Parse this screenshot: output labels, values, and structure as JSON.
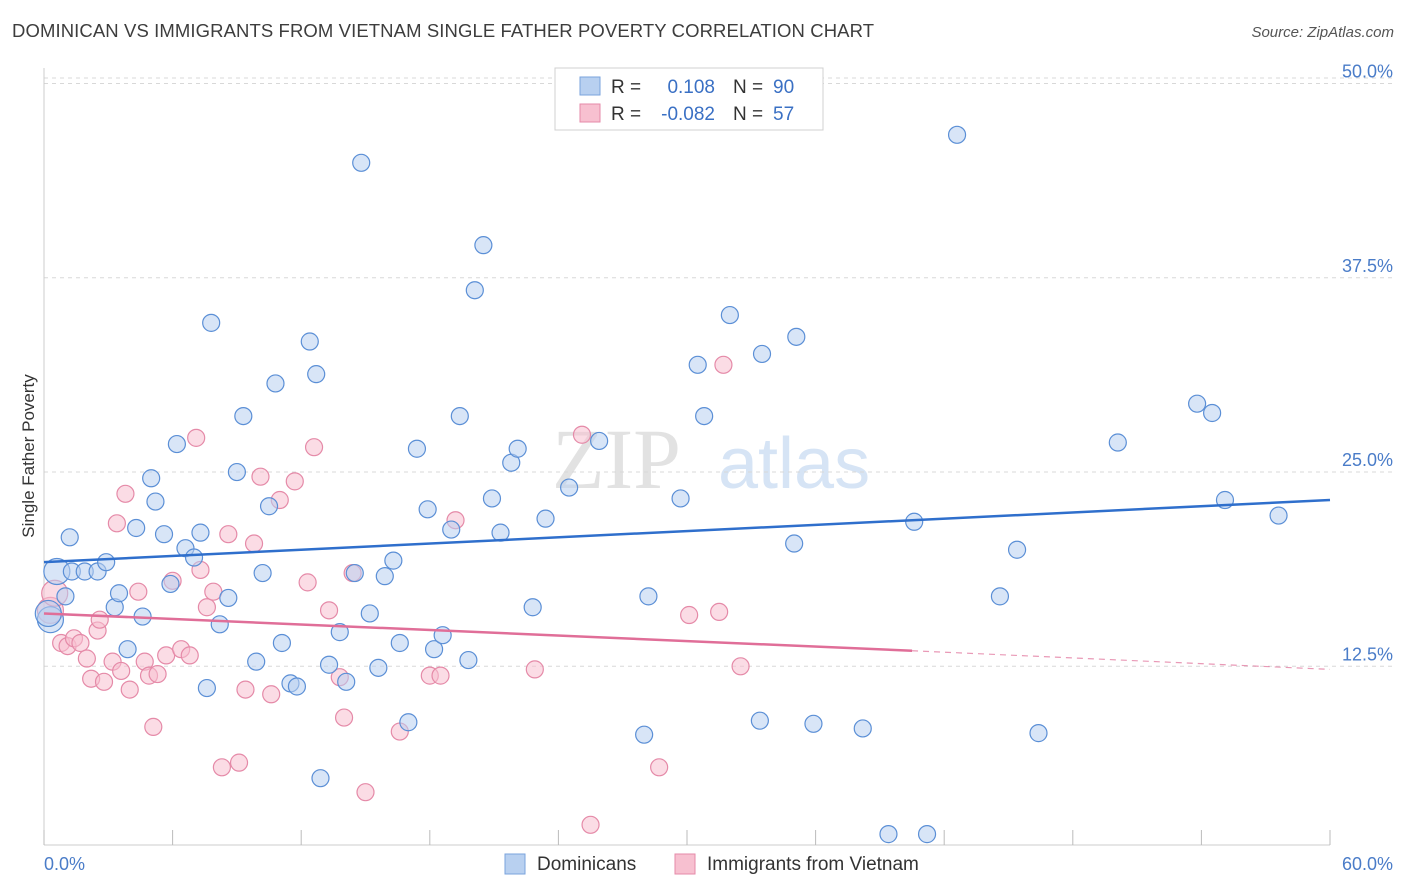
{
  "title": "DOMINICAN VS IMMIGRANTS FROM VIETNAM SINGLE FATHER POVERTY CORRELATION CHART",
  "source": "Source: ZipAtlas.com",
  "watermark": {
    "zip": "ZIP",
    "atlas": "atlas"
  },
  "colors": {
    "blue_fill": "#b8d0f0",
    "blue_stroke": "#5b8fd6",
    "blue_line": "#2f6fcc",
    "pink_fill": "#f7c0d0",
    "pink_stroke": "#e58aa8",
    "pink_line": "#e06e98",
    "grid": "#d8d8d8",
    "tick_text": "#4a7cc8"
  },
  "legend": {
    "rows": [
      {
        "r_label": "R =",
        "r_value": "0.108",
        "n_label": "N =",
        "n_value": "90",
        "series": "blue"
      },
      {
        "r_label": "R =",
        "r_value": "-0.082",
        "n_label": "N =",
        "n_value": "57",
        "series": "pink"
      }
    ]
  },
  "bottom_legend": [
    "Dominicans",
    "Immigrants from Vietnam"
  ],
  "chart_data": {
    "type": "scatter",
    "ylabel": "Single Father Poverty",
    "x_tick_labels": [
      "0.0%",
      "60.0%"
    ],
    "y_tick_labels": [
      "12.5%",
      "25.0%",
      "37.5%",
      "50.0%"
    ],
    "y_ticks": [
      12.5,
      25.0,
      37.5,
      50.0
    ],
    "xlim": [
      0,
      60
    ],
    "ylim": [
      1.0,
      51.0
    ],
    "grid": true,
    "legend_position": "top-center",
    "series": [
      {
        "name": "Dominicans",
        "color": "blue",
        "trend": {
          "x": [
            0,
            60
          ],
          "y": [
            19.2,
            23.2
          ],
          "dashed_from": null
        },
        "points": [
          [
            0.6,
            18.6
          ],
          [
            1.0,
            17.0
          ],
          [
            1.2,
            20.8
          ],
          [
            1.3,
            18.6
          ],
          [
            1.9,
            18.6
          ],
          [
            2.5,
            18.6
          ],
          [
            2.9,
            19.2
          ],
          [
            3.3,
            16.3
          ],
          [
            3.5,
            17.2
          ],
          [
            3.9,
            13.6
          ],
          [
            4.3,
            21.4
          ],
          [
            4.6,
            15.7
          ],
          [
            5.0,
            24.6
          ],
          [
            5.2,
            23.1
          ],
          [
            5.6,
            21.0
          ],
          [
            5.9,
            17.8
          ],
          [
            6.2,
            26.8
          ],
          [
            6.6,
            20.1
          ],
          [
            7.0,
            19.5
          ],
          [
            7.3,
            21.1
          ],
          [
            7.6,
            11.1
          ],
          [
            7.8,
            34.6
          ],
          [
            8.2,
            15.2
          ],
          [
            8.6,
            16.9
          ],
          [
            9.0,
            25.0
          ],
          [
            9.3,
            28.6
          ],
          [
            9.9,
            12.8
          ],
          [
            10.2,
            18.5
          ],
          [
            10.5,
            22.8
          ],
          [
            10.8,
            30.7
          ],
          [
            11.1,
            14.0
          ],
          [
            11.5,
            11.4
          ],
          [
            11.8,
            11.2
          ],
          [
            12.4,
            33.4
          ],
          [
            12.7,
            31.3
          ],
          [
            12.9,
            5.3
          ],
          [
            13.3,
            12.6
          ],
          [
            13.8,
            14.7
          ],
          [
            14.1,
            11.5
          ],
          [
            14.5,
            18.5
          ],
          [
            14.8,
            44.9
          ],
          [
            15.2,
            15.9
          ],
          [
            15.6,
            12.4
          ],
          [
            15.9,
            18.3
          ],
          [
            16.3,
            19.3
          ],
          [
            16.6,
            14.0
          ],
          [
            17.0,
            8.9
          ],
          [
            17.4,
            26.5
          ],
          [
            17.9,
            22.6
          ],
          [
            18.2,
            13.6
          ],
          [
            18.6,
            14.5
          ],
          [
            19.0,
            21.3
          ],
          [
            19.4,
            28.6
          ],
          [
            19.8,
            12.9
          ],
          [
            20.1,
            36.7
          ],
          [
            20.5,
            39.6
          ],
          [
            20.9,
            23.3
          ],
          [
            21.3,
            21.1
          ],
          [
            21.8,
            25.6
          ],
          [
            22.1,
            26.5
          ],
          [
            22.8,
            16.3
          ],
          [
            23.4,
            22.0
          ],
          [
            24.5,
            24.0
          ],
          [
            25.9,
            27.0
          ],
          [
            28.0,
            8.1
          ],
          [
            28.2,
            17.0
          ],
          [
            29.7,
            23.3
          ],
          [
            30.5,
            31.9
          ],
          [
            30.8,
            28.6
          ],
          [
            32.0,
            35.1
          ],
          [
            33.4,
            9.0
          ],
          [
            33.5,
            32.6
          ],
          [
            35.0,
            20.4
          ],
          [
            35.1,
            33.7
          ],
          [
            35.9,
            8.8
          ],
          [
            38.2,
            8.5
          ],
          [
            39.4,
            1.7
          ],
          [
            40.6,
            21.8
          ],
          [
            41.2,
            1.7
          ],
          [
            42.6,
            46.7
          ],
          [
            44.6,
            17.0
          ],
          [
            45.4,
            20.0
          ],
          [
            46.4,
            8.2
          ],
          [
            50.1,
            26.9
          ],
          [
            53.8,
            29.4
          ],
          [
            54.5,
            28.8
          ],
          [
            55.1,
            23.2
          ],
          [
            57.6,
            22.2
          ],
          [
            0.3,
            15.5
          ],
          [
            0.2,
            15.9
          ]
        ]
      },
      {
        "name": "Immigrants from Vietnam",
        "color": "pink",
        "trend": {
          "x": [
            0,
            40.5,
            60
          ],
          "y": [
            15.9,
            13.5,
            12.3
          ],
          "dashed_from": 40.5
        },
        "points": [
          [
            0.3,
            16.1
          ],
          [
            0.5,
            17.2
          ],
          [
            0.8,
            14.0
          ],
          [
            1.1,
            13.8
          ],
          [
            1.4,
            14.3
          ],
          [
            1.7,
            14.0
          ],
          [
            2.0,
            13.0
          ],
          [
            2.2,
            11.7
          ],
          [
            2.5,
            14.8
          ],
          [
            2.6,
            15.5
          ],
          [
            2.8,
            11.5
          ],
          [
            3.2,
            12.8
          ],
          [
            3.4,
            21.7
          ],
          [
            3.6,
            12.2
          ],
          [
            3.8,
            23.6
          ],
          [
            4.0,
            11.0
          ],
          [
            4.4,
            17.3
          ],
          [
            4.7,
            12.8
          ],
          [
            4.9,
            11.9
          ],
          [
            5.1,
            8.6
          ],
          [
            5.3,
            12.0
          ],
          [
            5.7,
            13.2
          ],
          [
            6.0,
            18.0
          ],
          [
            6.4,
            13.6
          ],
          [
            6.8,
            13.2
          ],
          [
            7.1,
            27.2
          ],
          [
            7.3,
            18.7
          ],
          [
            7.6,
            16.3
          ],
          [
            7.9,
            17.3
          ],
          [
            8.3,
            6.0
          ],
          [
            8.6,
            21.0
          ],
          [
            9.1,
            6.3
          ],
          [
            9.4,
            11.0
          ],
          [
            9.8,
            20.4
          ],
          [
            10.1,
            24.7
          ],
          [
            10.6,
            10.7
          ],
          [
            11.0,
            23.2
          ],
          [
            11.7,
            24.4
          ],
          [
            12.3,
            17.9
          ],
          [
            12.6,
            26.6
          ],
          [
            13.3,
            16.1
          ],
          [
            13.8,
            11.8
          ],
          [
            14.0,
            9.2
          ],
          [
            14.4,
            18.5
          ],
          [
            15.0,
            4.4
          ],
          [
            16.6,
            8.3
          ],
          [
            18.0,
            11.9
          ],
          [
            18.5,
            11.9
          ],
          [
            19.2,
            21.9
          ],
          [
            22.9,
            12.3
          ],
          [
            25.1,
            27.4
          ],
          [
            25.5,
            2.3
          ],
          [
            28.7,
            6.0
          ],
          [
            30.1,
            15.8
          ],
          [
            31.5,
            16.0
          ],
          [
            31.7,
            31.9
          ],
          [
            32.5,
            12.5
          ]
        ]
      }
    ]
  }
}
